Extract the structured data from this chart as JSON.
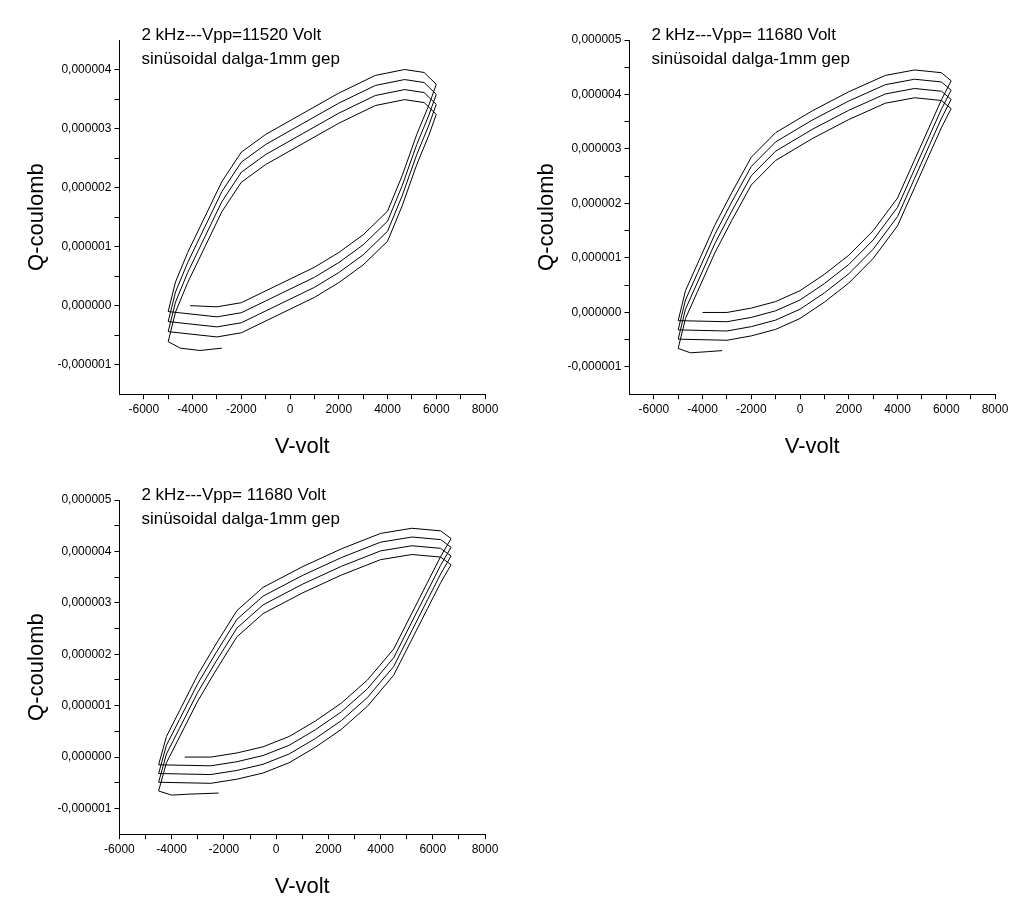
{
  "chart_data": [
    {
      "type": "line",
      "title": "2 kHz---Vpp=11520 Volt",
      "subtitle": "sinüsoidal dalga-1mm gep",
      "xlabel": "V-volt",
      "ylabel": "Q-coulomb",
      "marker": "none",
      "line_style": "solid",
      "color": "#000000",
      "xlim": [
        -7000,
        8000
      ],
      "xticks": [
        -6000,
        {
          "value": -5000,
          "label": null
        },
        -4000,
        {
          "value": -3000,
          "label": null
        },
        -2000,
        {
          "value": -1000,
          "label": null
        },
        0,
        {
          "value": 1000,
          "label": null
        },
        2000,
        {
          "value": 3000,
          "label": null
        },
        4000,
        {
          "value": 5000,
          "label": null
        },
        6000,
        {
          "value": 7000,
          "label": null
        },
        8000
      ],
      "ylim": [
        -1.5e-06,
        4.5e-06
      ],
      "yticks": [
        {
          "value": -1e-06,
          "label": "-0,000001"
        },
        {
          "value": -5e-07,
          "label": null
        },
        {
          "value": 0,
          "label": "0,000000"
        },
        {
          "value": 5e-07,
          "label": null
        },
        {
          "value": 1e-06,
          "label": "0,000001"
        },
        {
          "value": 1.5e-06,
          "label": null
        },
        {
          "value": 2e-06,
          "label": "0,000002"
        },
        {
          "value": 2.5e-06,
          "label": null
        },
        {
          "value": 3e-06,
          "label": "0,000003"
        },
        {
          "value": 3.5e-06,
          "label": null
        },
        {
          "value": 4e-06,
          "label": "0,000004"
        }
      ],
      "x": [
        -4100,
        -3000,
        -2000,
        -1000,
        0,
        1000,
        2000,
        3000,
        4000,
        4600,
        5200,
        5700,
        6000,
        5500,
        4700,
        3500,
        2000,
        500,
        -1000,
        -2000,
        -2800,
        -3500,
        -4200,
        -4700,
        -5000,
        -3000,
        -2000,
        -1000,
        0,
        1000,
        2000,
        3000,
        4000,
        4600,
        5200,
        5700,
        6000,
        5500,
        4700,
        3500,
        2000,
        500,
        -1000,
        -2000,
        -2800,
        -3500,
        -4200,
        -4700,
        -5000,
        -3000,
        -2000,
        -1000,
        0,
        1000,
        2000,
        3000,
        4000,
        4600,
        5200,
        5700,
        6000,
        5500,
        4700,
        3500,
        2000,
        500,
        -1000,
        -2000,
        -2800,
        -3500,
        -4200,
        -4700,
        -5000,
        -3000,
        -2000,
        -1000,
        0,
        1000,
        2000,
        3000,
        4000,
        4600,
        5200,
        5700,
        6000,
        5500,
        4700,
        3500,
        2000,
        500,
        -1000,
        -2000,
        -2800,
        -3500,
        -4200,
        -4700,
        -5000,
        -4500,
        -3700,
        -2800
      ],
      "values": [
        0,
        -2e-08,
        5e-08,
        2.5e-07,
        4.5e-07,
        6.5e-07,
        9e-07,
        1.2e-06,
        1.6e-06,
        2.2e-06,
        2.9e-06,
        3.4e-06,
        3.75e-06,
        3.95e-06,
        4e-06,
        3.9e-06,
        3.6e-06,
        3.25e-06,
        2.9e-06,
        2.6e-06,
        2.1e-06,
        1.5e-06,
        9e-07,
        4e-07,
        -1e-07,
        -1.9e-07,
        -1.2e-07,
        8e-08,
        2.8e-07,
        4.8e-07,
        7.3e-07,
        1.03e-06,
        1.43e-06,
        2.03e-06,
        2.73e-06,
        3.23e-06,
        3.58e-06,
        3.78e-06,
        3.83e-06,
        3.73e-06,
        3.43e-06,
        3.08e-06,
        2.73e-06,
        2.43e-06,
        1.93e-06,
        1.33e-06,
        7.3e-07,
        2.3e-07,
        -2.7e-07,
        -3.6e-07,
        -2.9e-07,
        -9e-08,
        1.1e-07,
        3.1e-07,
        5.6e-07,
        8.6e-07,
        1.26e-06,
        1.86e-06,
        2.56e-06,
        3.06e-06,
        3.41e-06,
        3.61e-06,
        3.66e-06,
        3.56e-06,
        3.26e-06,
        2.91e-06,
        2.56e-06,
        2.26e-06,
        1.76e-06,
        1.16e-06,
        5.6e-07,
        6e-08,
        -4.4e-07,
        -5.3e-07,
        -4.6e-07,
        -2.6e-07,
        -6e-08,
        1.4e-07,
        3.9e-07,
        6.9e-07,
        1.09e-06,
        1.69e-06,
        2.39e-06,
        2.89e-06,
        3.24e-06,
        3.44e-06,
        3.49e-06,
        3.39e-06,
        3.09e-06,
        2.74e-06,
        2.39e-06,
        2.09e-06,
        1.59e-06,
        9.9e-07,
        3.9e-07,
        -1.1e-07,
        -6.1e-07,
        -7.2e-07,
        -7.6e-07,
        -7.2e-07
      ]
    },
    {
      "type": "line",
      "title": "2 kHz---Vpp= 11680 Volt",
      "subtitle": "sinüsoidal dalga-1mm gep",
      "xlabel": "V-volt",
      "ylabel": "Q-coulomb",
      "marker": "none",
      "line_style": "solid",
      "color": "#000000",
      "xlim": [
        -7000,
        8000
      ],
      "xticks": [
        -6000,
        {
          "value": -5000,
          "label": null
        },
        -4000,
        {
          "value": -3000,
          "label": null
        },
        -2000,
        {
          "value": -1000,
          "label": null
        },
        0,
        {
          "value": 1000,
          "label": null
        },
        2000,
        {
          "value": 3000,
          "label": null
        },
        4000,
        {
          "value": 5000,
          "label": null
        },
        6000,
        {
          "value": 7000,
          "label": null
        },
        8000
      ],
      "ylim": [
        -1.5e-06,
        5e-06
      ],
      "yticks": [
        {
          "value": -1e-06,
          "label": "-0,000001"
        },
        {
          "value": -5e-07,
          "label": null
        },
        {
          "value": 0,
          "label": "0,000000"
        },
        {
          "value": 5e-07,
          "label": null
        },
        {
          "value": 1e-06,
          "label": "0,000001"
        },
        {
          "value": 1.5e-06,
          "label": null
        },
        {
          "value": 2e-06,
          "label": "0,000002"
        },
        {
          "value": 2.5e-06,
          "label": null
        },
        {
          "value": 3e-06,
          "label": "0,000003"
        },
        {
          "value": 3.5e-06,
          "label": null
        },
        {
          "value": 4e-06,
          "label": "0,000004"
        },
        {
          "value": 4.5e-06,
          "label": null
        },
        {
          "value": 5e-06,
          "label": "0,000005"
        }
      ],
      "x": [
        -4000,
        -3000,
        -2000,
        -1000,
        0,
        1000,
        2000,
        3000,
        4000,
        4700,
        5300,
        5800,
        6200,
        5800,
        4700,
        3500,
        2000,
        500,
        -1000,
        -2000,
        -2800,
        -3500,
        -4200,
        -4700,
        -5000,
        -3000,
        -2000,
        -1000,
        0,
        1000,
        2000,
        3000,
        4000,
        4700,
        5300,
        5800,
        6200,
        5800,
        4700,
        3500,
        2000,
        500,
        -1000,
        -2000,
        -2800,
        -3500,
        -4200,
        -4700,
        -5000,
        -3000,
        -2000,
        -1000,
        0,
        1000,
        2000,
        3000,
        4000,
        4700,
        5300,
        5800,
        6200,
        5800,
        4700,
        3500,
        2000,
        500,
        -1000,
        -2000,
        -2800,
        -3500,
        -4200,
        -4700,
        -5000,
        -3000,
        -2000,
        -1000,
        0,
        1000,
        2000,
        3000,
        4000,
        4700,
        5300,
        5800,
        6200,
        5800,
        4700,
        3500,
        2000,
        500,
        -1000,
        -2000,
        -2800,
        -3500,
        -4200,
        -4700,
        -5000,
        -4500,
        -3800,
        -3200
      ],
      "values": [
        0,
        0,
        8e-08,
        2e-07,
        4e-07,
        7e-07,
        1.05e-06,
        1.5e-06,
        2.1e-06,
        2.8e-06,
        3.4e-06,
        3.9e-06,
        4.25e-06,
        4.4e-06,
        4.45e-06,
        4.35e-06,
        4.05e-06,
        3.7e-06,
        3.3e-06,
        2.85e-06,
        2.2e-06,
        1.6e-06,
        9e-07,
        4e-07,
        -1.5e-07,
        -1.7e-07,
        -9e-08,
        3e-08,
        2.3e-07,
        5.3e-07,
        8.8e-07,
        1.33e-06,
        1.93e-06,
        2.63e-06,
        3.23e-06,
        3.73e-06,
        4.08e-06,
        4.23e-06,
        4.28e-06,
        4.18e-06,
        3.88e-06,
        3.53e-06,
        3.13e-06,
        2.68e-06,
        2.03e-06,
        1.43e-06,
        7.3e-07,
        2.3e-07,
        -3.2e-07,
        -3.4e-07,
        -2.6e-07,
        -1.4e-07,
        6e-08,
        3.6e-07,
        7.1e-07,
        1.16e-06,
        1.76e-06,
        2.46e-06,
        3.06e-06,
        3.56e-06,
        3.91e-06,
        4.06e-06,
        4.11e-06,
        4.01e-06,
        3.71e-06,
        3.36e-06,
        2.96e-06,
        2.51e-06,
        1.86e-06,
        1.26e-06,
        5.6e-07,
        6e-08,
        -4.9e-07,
        -5.1e-07,
        -4.3e-07,
        -3.1e-07,
        -1.1e-07,
        1.9e-07,
        5.4e-07,
        9.9e-07,
        1.59e-06,
        2.29e-06,
        2.89e-06,
        3.39e-06,
        3.74e-06,
        3.89e-06,
        3.94e-06,
        3.84e-06,
        3.54e-06,
        3.19e-06,
        2.79e-06,
        2.34e-06,
        1.69e-06,
        1.09e-06,
        3.9e-07,
        -1.1e-07,
        -6.6e-07,
        -7.4e-07,
        -7.2e-07,
        -7e-07
      ]
    },
    {
      "type": "line",
      "title": "2 kHz---Vpp= 11680 Volt",
      "subtitle": "sinüsoidal dalga-1mm gep",
      "xlabel": "V-volt",
      "ylabel": "Q-coulomb",
      "marker": "none",
      "line_style": "solid",
      "color": "#000000",
      "xlim": [
        -6000,
        8000
      ],
      "xticks": [
        -6000,
        {
          "value": -5000,
          "label": null
        },
        -4000,
        {
          "value": -3000,
          "label": null
        },
        -2000,
        {
          "value": -1000,
          "label": null
        },
        0,
        {
          "value": 1000,
          "label": null
        },
        2000,
        {
          "value": 3000,
          "label": null
        },
        4000,
        {
          "value": 5000,
          "label": null
        },
        6000,
        {
          "value": 7000,
          "label": null
        },
        8000
      ],
      "ylim": [
        -1.5e-06,
        5e-06
      ],
      "yticks": [
        {
          "value": -1e-06,
          "label": "-0,000001"
        },
        {
          "value": -5e-07,
          "label": null
        },
        {
          "value": 0,
          "label": "0,000000"
        },
        {
          "value": 5e-07,
          "label": null
        },
        {
          "value": 1e-06,
          "label": "0,000001"
        },
        {
          "value": 1.5e-06,
          "label": null
        },
        {
          "value": 2e-06,
          "label": "0,000002"
        },
        {
          "value": 2.5e-06,
          "label": null
        },
        {
          "value": 3e-06,
          "label": "0,000003"
        },
        {
          "value": 3.5e-06,
          "label": null
        },
        {
          "value": 4e-06,
          "label": "0,000004"
        },
        {
          "value": 4.5e-06,
          "label": null
        },
        {
          "value": 5e-06,
          "label": "0,000005"
        }
      ],
      "x": [
        -3500,
        -2500,
        -1500,
        -500,
        500,
        1500,
        2500,
        3500,
        4500,
        5200,
        5800,
        6300,
        6700,
        6300,
        5200,
        4000,
        2500,
        1000,
        -500,
        -1500,
        -2300,
        -3000,
        -3700,
        -4200,
        -4500,
        -2500,
        -1500,
        -500,
        500,
        1500,
        2500,
        3500,
        4500,
        5200,
        5800,
        6300,
        6700,
        6300,
        5200,
        4000,
        2500,
        1000,
        -500,
        -1500,
        -2300,
        -3000,
        -3700,
        -4200,
        -4500,
        -2500,
        -1500,
        -500,
        500,
        1500,
        2500,
        3500,
        4500,
        5200,
        5800,
        6300,
        6700,
        6300,
        5200,
        4000,
        2500,
        1000,
        -500,
        -1500,
        -2300,
        -3000,
        -3700,
        -4200,
        -4500,
        -2500,
        -1500,
        -500,
        500,
        1500,
        2500,
        3500,
        4500,
        5200,
        5800,
        6300,
        6700,
        6300,
        5200,
        4000,
        2500,
        1000,
        -500,
        -1500,
        -2300,
        -3000,
        -3700,
        -4200,
        -4500,
        -4000,
        -3300,
        -2200
      ],
      "values": [
        0,
        0,
        8e-08,
        2e-07,
        4e-07,
        7e-07,
        1.05e-06,
        1.5e-06,
        2.1e-06,
        2.8e-06,
        3.4e-06,
        3.9e-06,
        4.25e-06,
        4.4e-06,
        4.45e-06,
        4.35e-06,
        4.05e-06,
        3.7e-06,
        3.3e-06,
        2.85e-06,
        2.2e-06,
        1.6e-06,
        9e-07,
        4e-07,
        -1.5e-07,
        -1.7e-07,
        -9e-08,
        3e-08,
        2.3e-07,
        5.3e-07,
        8.8e-07,
        1.33e-06,
        1.93e-06,
        2.63e-06,
        3.23e-06,
        3.73e-06,
        4.08e-06,
        4.23e-06,
        4.28e-06,
        4.18e-06,
        3.88e-06,
        3.53e-06,
        3.13e-06,
        2.68e-06,
        2.03e-06,
        1.43e-06,
        7.3e-07,
        2.3e-07,
        -3.2e-07,
        -3.4e-07,
        -2.6e-07,
        -1.4e-07,
        6e-08,
        3.6e-07,
        7.1e-07,
        1.16e-06,
        1.76e-06,
        2.46e-06,
        3.06e-06,
        3.56e-06,
        3.91e-06,
        4.06e-06,
        4.11e-06,
        4.01e-06,
        3.71e-06,
        3.36e-06,
        2.96e-06,
        2.51e-06,
        1.86e-06,
        1.26e-06,
        5.6e-07,
        6e-08,
        -4.9e-07,
        -5.1e-07,
        -4.3e-07,
        -3.1e-07,
        -1.1e-07,
        1.9e-07,
        5.4e-07,
        9.9e-07,
        1.59e-06,
        2.29e-06,
        2.89e-06,
        3.39e-06,
        3.74e-06,
        3.89e-06,
        3.94e-06,
        3.84e-06,
        3.54e-06,
        3.19e-06,
        2.79e-06,
        2.34e-06,
        1.69e-06,
        1.09e-06,
        3.9e-07,
        -1.1e-07,
        -6.6e-07,
        -7.4e-07,
        -7.2e-07,
        -7e-07
      ]
    }
  ]
}
